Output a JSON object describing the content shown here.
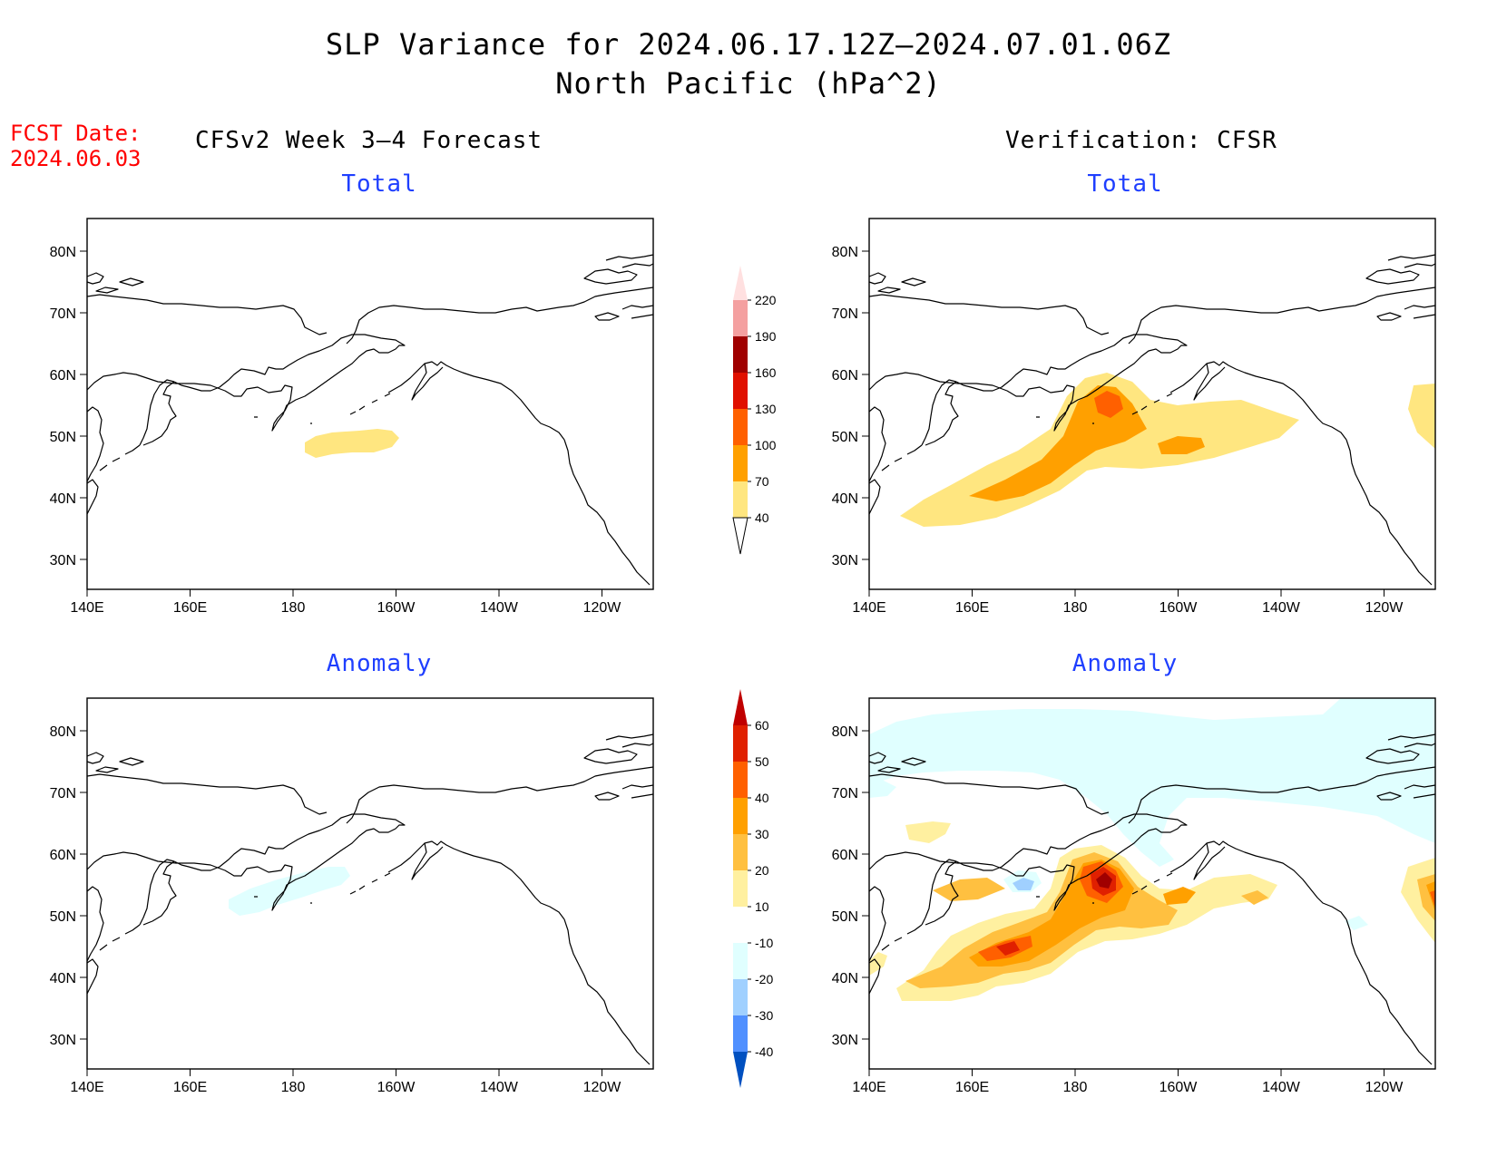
{
  "title": {
    "line1": "SLP Variance for 2024.06.17.12Z–2024.07.01.06Z",
    "line2": "North Pacific (hPa^2)"
  },
  "fcst_date": {
    "label": "FCST Date:",
    "value": "2024.06.03"
  },
  "columns": {
    "left": "CFSv2 Week 3–4 Forecast",
    "right": "Verification: CFSR"
  },
  "panel_titles": {
    "fcst_total": "Total",
    "fcst_anomaly": "Anomaly",
    "verif_total": "Total",
    "verif_anomaly": "Anomaly"
  },
  "axes": {
    "lon_ticks": [
      "140E",
      "160E",
      "180",
      "160W",
      "140W",
      "120W"
    ],
    "lat_ticks": [
      "80N",
      "70N",
      "60N",
      "50N",
      "40N",
      "30N"
    ],
    "lon_range": [
      140,
      250
    ],
    "lat_range": [
      25,
      85
    ]
  },
  "colorbars": {
    "total": {
      "levels": [
        "40",
        "70",
        "100",
        "130",
        "160",
        "190",
        "220"
      ],
      "colors": [
        "#ffe680",
        "#ffa000",
        "#ff6000",
        "#e01000",
        "#a00000",
        "#f4a0a0",
        "#ffe0e0"
      ]
    },
    "anomaly": {
      "levels": [
        "60",
        "50",
        "40",
        "30",
        "20",
        "10",
        "-10",
        "-20",
        "-30",
        "-40"
      ],
      "colors": [
        "#c00000",
        "#e02000",
        "#ff6000",
        "#ffa000",
        "#ffc040",
        "#fff0a0",
        "#ffffff",
        "#e0ffff",
        "#a0d0ff",
        "#5090ff",
        "#2070e0",
        "#0050c0"
      ]
    }
  },
  "chart_data": [
    {
      "type": "map",
      "panel": "CFSv2 Week 3–4 Forecast Total",
      "units": "hPa^2",
      "regions": [
        {
          "level_min": 40,
          "level_max": 70,
          "center_lon": 187,
          "center_lat": 48.5
        }
      ]
    },
    {
      "type": "map",
      "panel": "Verification CFSR Total",
      "units": "hPa^2",
      "regions": [
        {
          "level_min": 40,
          "level_max": 70,
          "center_lon": 185,
          "center_lat": 48
        },
        {
          "level_min": 70,
          "level_max": 100,
          "center_lon": 177,
          "center_lat": 46
        },
        {
          "level_min": 100,
          "level_max": 130,
          "center_lon": 186,
          "center_lat": 55
        }
      ]
    },
    {
      "type": "map",
      "panel": "CFSv2 Week 3–4 Forecast Anomaly",
      "units": "hPa^2",
      "regions": [
        {
          "level_min": -20,
          "level_max": -10,
          "center_lon": 180,
          "center_lat": 53
        }
      ]
    },
    {
      "type": "map",
      "panel": "Verification CFSR Anomaly",
      "units": "hPa^2",
      "regions": [
        {
          "level_min": -20,
          "level_max": -10,
          "center_lon": 200,
          "center_lat": 73
        },
        {
          "level_min": 10,
          "level_max": 20,
          "center_lon": 183,
          "center_lat": 48
        },
        {
          "level_min": 20,
          "level_max": 30,
          "center_lon": 175,
          "center_lat": 45
        },
        {
          "level_min": 40,
          "level_max": 50,
          "center_lon": 168,
          "center_lat": 42
        },
        {
          "level_min": 50,
          "level_max": 60,
          "center_lon": 186,
          "center_lat": 55
        },
        {
          "level_min": -30,
          "level_max": -20,
          "center_lon": 178,
          "center_lat": 53
        }
      ]
    }
  ]
}
